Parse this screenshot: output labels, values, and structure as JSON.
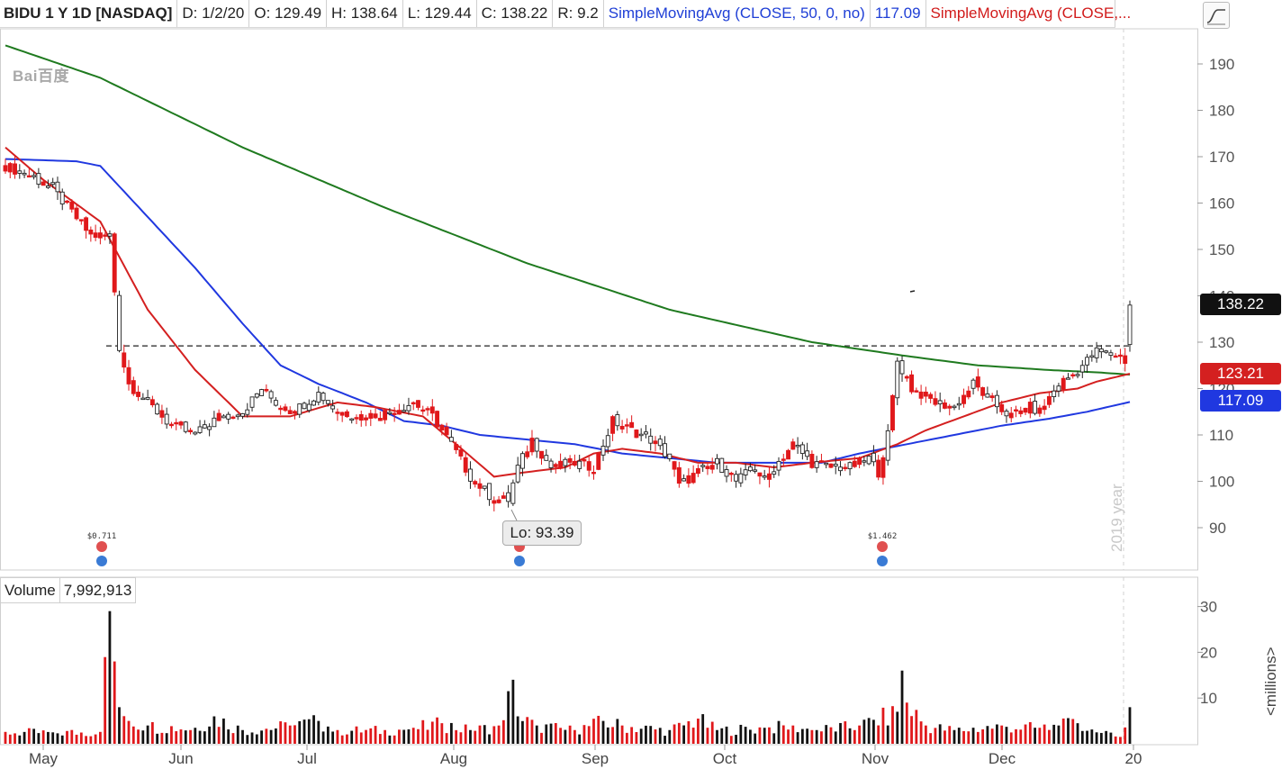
{
  "header": {
    "symbol": "BIDU 1 Y 1D [NASDAQ]",
    "date": "D: 1/2/20",
    "open": "O: 129.49",
    "high": "H: 138.64",
    "low": "L: 129.44",
    "close": "C: 138.22",
    "range": "R: 9.2",
    "sma50_label": "SimpleMovingAvg (CLOSE, 50, 0, no)",
    "sma50_value": "117.09",
    "sma_second_label": "SimpleMovingAvg (CLOSE,..."
  },
  "watermark": {
    "brand": "Bai百度"
  },
  "price_tags": {
    "close": "138.22",
    "sma20": "123.21",
    "sma50": "117.09"
  },
  "low_marker": "Lo: 93.39",
  "dividends": [
    "$0.711",
    "$1.462"
  ],
  "year_label": "2019 year",
  "volume": {
    "label": "Volume",
    "value": "7,992,913",
    "unit": "<millions>"
  },
  "colors": {
    "up": "#ffffff",
    "down": "#e0181b",
    "sma20": "#d42020",
    "sma50": "#2038e0",
    "sma200": "#1f7a1f",
    "vol_up": "#111111",
    "vol_down": "#e0181b",
    "tag_close": "#111111",
    "tag_sma20": "#d42020",
    "tag_sma50": "#2038e0"
  },
  "chart_data": {
    "type": "candlestick",
    "price_axis": {
      "ticks": [
        90,
        100,
        110,
        120,
        130,
        140,
        150,
        160,
        170,
        180,
        190
      ]
    },
    "volume_axis": {
      "ticks": [
        10,
        20,
        30
      ],
      "unit": "millions"
    },
    "x_labels": [
      "May",
      "Jun",
      "Jul",
      "Aug",
      "Sep",
      "Oct",
      "Nov",
      "Dec",
      "20"
    ],
    "reference_line": 129.2,
    "series": [
      {
        "name": "SimpleMovingAvg (CLOSE, 50, 0, no)",
        "last": 117.09
      },
      {
        "name": "SimpleMovingAvg (CLOSE,...",
        "last": 123.21
      }
    ],
    "anchors": [
      [
        0,
        168,
        -1
      ],
      [
        5,
        166,
        -1
      ],
      [
        10,
        163,
        1
      ],
      [
        14,
        158,
        -1
      ],
      [
        18,
        153,
        -1
      ],
      [
        22,
        153,
        1
      ],
      [
        24,
        129,
        -1
      ],
      [
        26,
        121,
        -1
      ],
      [
        30,
        117,
        -1
      ],
      [
        35,
        112,
        -1
      ],
      [
        40,
        110,
        1
      ],
      [
        45,
        114,
        1
      ],
      [
        50,
        115,
        1
      ],
      [
        54,
        120,
        1
      ],
      [
        58,
        116,
        -1
      ],
      [
        62,
        116,
        1
      ],
      [
        66,
        119,
        1
      ],
      [
        70,
        115,
        -1
      ],
      [
        76,
        114,
        -1
      ],
      [
        81,
        115,
        1
      ],
      [
        86,
        117,
        1
      ],
      [
        90,
        114,
        -1
      ],
      [
        94,
        108,
        -1
      ],
      [
        98,
        101,
        -1
      ],
      [
        103,
        96,
        -1
      ],
      [
        106,
        96,
        1
      ],
      [
        108,
        103,
        1
      ],
      [
        111,
        109,
        -1
      ],
      [
        115,
        103,
        -1
      ],
      [
        120,
        104,
        -1
      ],
      [
        124,
        103,
        1
      ],
      [
        128,
        113,
        1
      ],
      [
        132,
        111,
        -1
      ],
      [
        136,
        109,
        -1
      ],
      [
        140,
        105,
        -1
      ],
      [
        142,
        99,
        -1
      ],
      [
        146,
        102,
        1
      ],
      [
        150,
        104,
        1
      ],
      [
        154,
        100,
        1
      ],
      [
        158,
        103,
        1
      ],
      [
        160,
        100,
        -1
      ],
      [
        162,
        103,
        1
      ],
      [
        166,
        108,
        1
      ],
      [
        170,
        104,
        -1
      ],
      [
        174,
        103,
        -1
      ],
      [
        178,
        103,
        1
      ],
      [
        182,
        105,
        1
      ],
      [
        184,
        102,
        -1
      ],
      [
        186,
        110,
        1
      ],
      [
        188,
        126,
        1
      ],
      [
        191,
        120,
        -1
      ],
      [
        196,
        117,
        -1
      ],
      [
        200,
        116,
        -1
      ],
      [
        204,
        121,
        1
      ],
      [
        208,
        117,
        -1
      ],
      [
        212,
        114,
        -1
      ],
      [
        216,
        116,
        1
      ],
      [
        218,
        115,
        -1
      ],
      [
        222,
        121,
        1
      ],
      [
        225,
        123,
        1
      ],
      [
        230,
        128,
        1
      ],
      [
        235,
        127,
        -1
      ],
      [
        236,
        126,
        -1
      ],
      [
        237,
        138.2,
        1
      ]
    ],
    "sma20_pts": [
      [
        0,
        172
      ],
      [
        8,
        165
      ],
      [
        20,
        156
      ],
      [
        30,
        137
      ],
      [
        40,
        124
      ],
      [
        50,
        114
      ],
      [
        60,
        114
      ],
      [
        70,
        117
      ],
      [
        78,
        116
      ],
      [
        88,
        114
      ],
      [
        95,
        108
      ],
      [
        103,
        101
      ],
      [
        110,
        102
      ],
      [
        118,
        103
      ],
      [
        124,
        106
      ],
      [
        130,
        107
      ],
      [
        138,
        106
      ],
      [
        146,
        104
      ],
      [
        154,
        104
      ],
      [
        162,
        103
      ],
      [
        170,
        104
      ],
      [
        180,
        105
      ],
      [
        188,
        108
      ],
      [
        194,
        111
      ],
      [
        202,
        114
      ],
      [
        210,
        117
      ],
      [
        218,
        119
      ],
      [
        226,
        120
      ],
      [
        230,
        121.5
      ],
      [
        237,
        123.2
      ]
    ],
    "sma50_pts": [
      [
        0,
        169.5
      ],
      [
        15,
        169
      ],
      [
        20,
        168
      ],
      [
        30,
        157
      ],
      [
        40,
        146
      ],
      [
        50,
        134
      ],
      [
        58,
        125
      ],
      [
        66,
        121
      ],
      [
        76,
        117
      ],
      [
        84,
        113
      ],
      [
        92,
        112
      ],
      [
        100,
        110
      ],
      [
        110,
        109
      ],
      [
        120,
        108
      ],
      [
        130,
        106
      ],
      [
        140,
        105
      ],
      [
        150,
        104
      ],
      [
        160,
        104
      ],
      [
        166,
        104
      ],
      [
        172,
        104
      ],
      [
        180,
        106
      ],
      [
        190,
        108
      ],
      [
        200,
        110
      ],
      [
        210,
        112
      ],
      [
        220,
        113.5
      ],
      [
        228,
        115
      ],
      [
        237,
        117.1
      ]
    ],
    "sma200_pts": [
      [
        0,
        194
      ],
      [
        20,
        187
      ],
      [
        50,
        172
      ],
      [
        80,
        159
      ],
      [
        110,
        147
      ],
      [
        140,
        137
      ],
      [
        170,
        130
      ],
      [
        190,
        127
      ],
      [
        205,
        125
      ],
      [
        220,
        124
      ],
      [
        230,
        123.5
      ],
      [
        237,
        123
      ]
    ],
    "volume_pts": [
      [
        0,
        2.6
      ],
      [
        10,
        2.5
      ],
      [
        20,
        2.6
      ],
      [
        22,
        29
      ],
      [
        23,
        18
      ],
      [
        24,
        8
      ],
      [
        26,
        5
      ],
      [
        30,
        4
      ],
      [
        40,
        3.5
      ],
      [
        44,
        6
      ],
      [
        50,
        3
      ],
      [
        60,
        4
      ],
      [
        66,
        5
      ],
      [
        70,
        3
      ],
      [
        80,
        3
      ],
      [
        86,
        3.5
      ],
      [
        92,
        4.5
      ],
      [
        98,
        3
      ],
      [
        104,
        4
      ],
      [
        106,
        11.5
      ],
      [
        107,
        14
      ],
      [
        108,
        6
      ],
      [
        112,
        4
      ],
      [
        120,
        3
      ],
      [
        126,
        5
      ],
      [
        130,
        4
      ],
      [
        140,
        3
      ],
      [
        146,
        5.5
      ],
      [
        150,
        3
      ],
      [
        160,
        3.5
      ],
      [
        166,
        4
      ],
      [
        170,
        3
      ],
      [
        180,
        4
      ],
      [
        188,
        7
      ],
      [
        189,
        16
      ],
      [
        190,
        9
      ],
      [
        194,
        4
      ],
      [
        200,
        3
      ],
      [
        210,
        4
      ],
      [
        218,
        3.5
      ],
      [
        222,
        4
      ],
      [
        226,
        4.5
      ],
      [
        230,
        2.5
      ],
      [
        235,
        1.5
      ],
      [
        237,
        8
      ]
    ]
  }
}
